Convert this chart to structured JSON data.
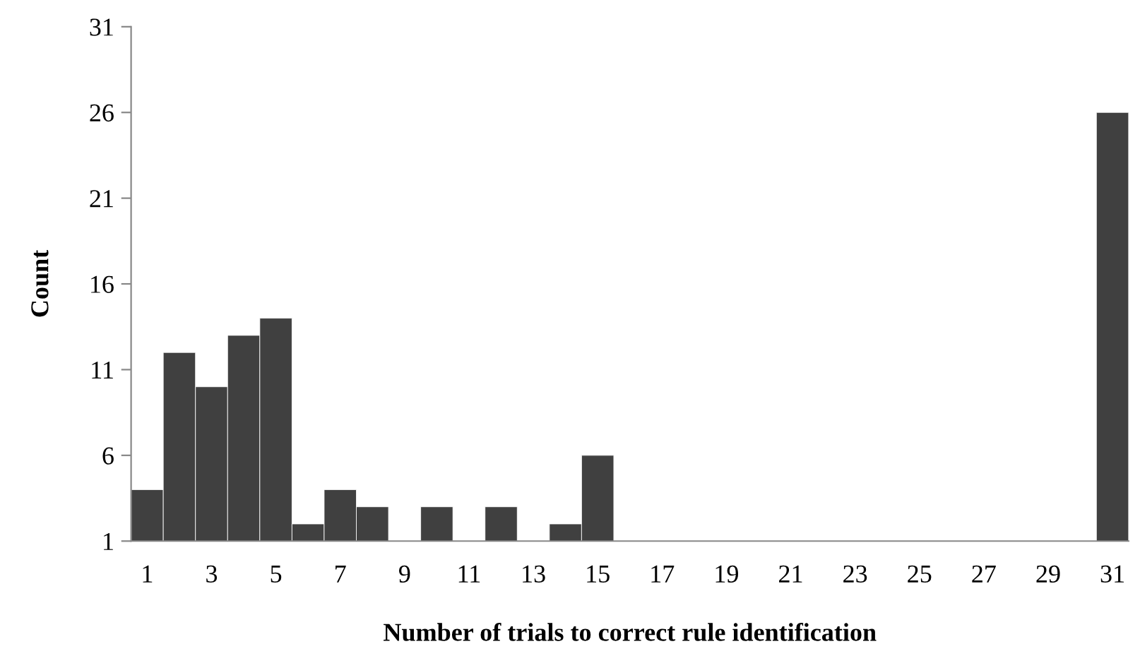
{
  "chart_data": {
    "type": "bar",
    "xlabel": "Number of trials to correct rule identification",
    "ylabel": "Count",
    "categories": [
      "1",
      null,
      "3",
      null,
      "5",
      null,
      "7",
      null,
      "9",
      null,
      "11",
      null,
      "13",
      null,
      "15",
      null,
      "17",
      null,
      "19",
      null,
      "21",
      null,
      "23",
      null,
      "25",
      null,
      "27",
      null,
      "29",
      null,
      "31"
    ],
    "values": [
      4,
      12,
      10,
      13,
      14,
      2,
      4,
      3,
      null,
      3,
      null,
      3,
      null,
      2,
      6,
      null,
      null,
      null,
      null,
      null,
      null,
      null,
      null,
      null,
      null,
      null,
      null,
      null,
      null,
      null,
      26
    ],
    "color": "#404040",
    "ylim": [
      1,
      31
    ],
    "yticks": [
      1,
      6,
      11,
      16,
      21,
      26,
      31
    ],
    "grid": false
  }
}
